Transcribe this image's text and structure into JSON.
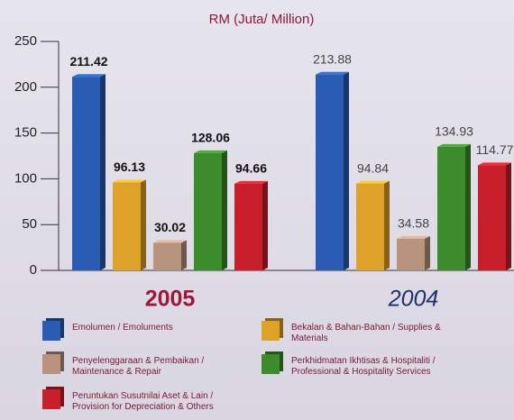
{
  "chart_data": {
    "type": "bar3d",
    "title": "RM (Juta/ Million)",
    "categories": [
      "2005",
      "2004"
    ],
    "ylim": [
      0,
      250
    ],
    "yticks": [
      0,
      50,
      100,
      150,
      200,
      250
    ],
    "series": [
      {
        "name": "Emolumen / Emoluments",
        "color": "#2b5cb3",
        "values": [
          211.42,
          213.88
        ]
      },
      {
        "name": "Bekalan & Bahan-Bahan / Supplies & Materials",
        "color": "#dfa229",
        "values": [
          96.13,
          94.84
        ]
      },
      {
        "name": "Penyelenggaraan & Pembaikan / Maintenance & Repair",
        "color": "#b8947e",
        "values": [
          30.02,
          34.58
        ]
      },
      {
        "name": "Perkhidmatan Ikhtisas & Hospitaliti / Professional & Hospitality Services",
        "color": "#3c8c2c",
        "values": [
          128.06,
          134.93
        ]
      },
      {
        "name": "Peruntukan Susutnilai Aset & Lain / Provision for Depreciation & Others",
        "color": "#c91f2b",
        "values": [
          94.66,
          114.77
        ]
      }
    ]
  }
}
